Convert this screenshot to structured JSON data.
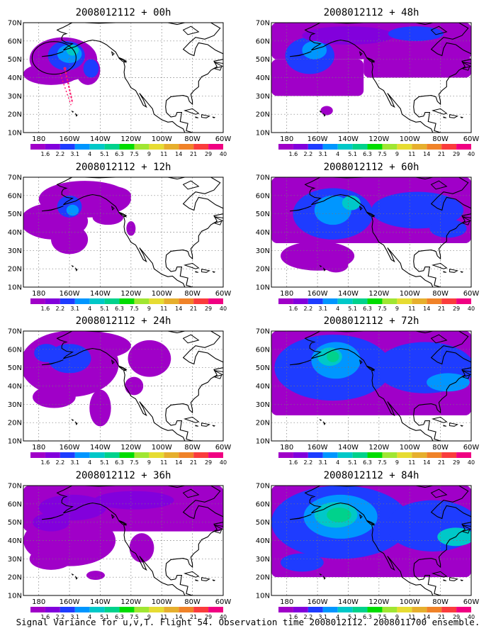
{
  "run_time": "2008012112",
  "panels": [
    {
      "title": "2008012112 + 00h",
      "lead": "00h",
      "track": true
    },
    {
      "title": "2008012112 + 48h",
      "lead": "48h",
      "track": false
    },
    {
      "title": "2008012112 + 12h",
      "lead": "12h",
      "track": false
    },
    {
      "title": "2008012112 + 60h",
      "lead": "60h",
      "track": false
    },
    {
      "title": "2008012112 + 24h",
      "lead": "24h",
      "track": false
    },
    {
      "title": "2008012112 + 72h",
      "lead": "72h",
      "track": false
    },
    {
      "title": "2008012112 + 36h",
      "lead": "36h",
      "track": false
    },
    {
      "title": "2008012112 + 84h",
      "lead": "84h",
      "track": false
    }
  ],
  "map": {
    "lat_labels": [
      "10N",
      "20N",
      "30N",
      "40N",
      "50N",
      "60N",
      "70N"
    ],
    "lon_labels": [
      "180",
      "160W",
      "140W",
      "120W",
      "100W",
      "80W",
      "60W"
    ],
    "lon_range": [
      -190,
      -60
    ],
    "lat_range": [
      10,
      70
    ],
    "grid": "dotted"
  },
  "colorbar": {
    "labels": [
      "1.6",
      "2.2",
      "3.1",
      "4",
      "5.1",
      "6.3",
      "7.5",
      "9",
      "11",
      "14",
      "21",
      "29",
      "40"
    ],
    "colors": [
      "#a000c8",
      "#8200dc",
      "#1e3cff",
      "#0096ff",
      "#00c8c8",
      "#00d28c",
      "#00dc00",
      "#a0e632",
      "#e6dc32",
      "#e6af2d",
      "#f08228",
      "#fa3c3c",
      "#f00082"
    ]
  },
  "footer": "Signal Variance for u,v,T. Flight 54. Observation time 2008012112. 2008011700 ensemble."
}
